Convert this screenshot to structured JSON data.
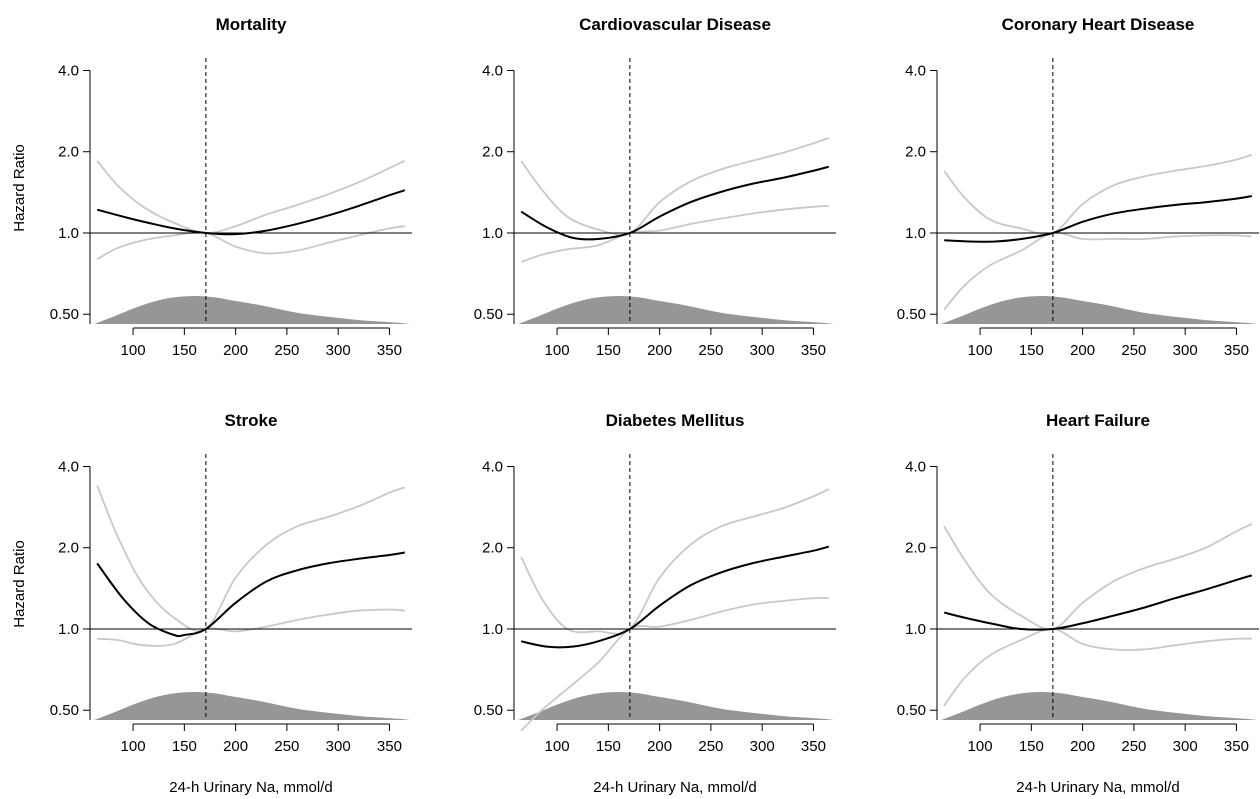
{
  "figure": {
    "y_axis_label": "Hazard Ratio",
    "x_axis_label": "24-h Urinary Na, mmol/d",
    "x_ticks": [
      100,
      150,
      200,
      250,
      300,
      350
    ],
    "y_ticks": [
      {
        "value": 0.5,
        "label": "0.50"
      },
      {
        "value": 1.0,
        "label": "1.0"
      },
      {
        "value": 2.0,
        "label": "2.0"
      },
      {
        "value": 4.0,
        "label": "4.0"
      }
    ],
    "colors": {
      "estimate": "#000000",
      "confidence_band": "#c8c8c8",
      "density": "#969696",
      "reference_line": "#000000"
    }
  },
  "chart_data": [
    {
      "type": "line",
      "title": "Mortality",
      "xlabel": "",
      "ylabel": "Hazard Ratio",
      "xlim": [
        58,
        372
      ],
      "ylim": [
        0.46,
        4.3
      ],
      "y_scale": "log",
      "reference_hr": 1.0,
      "reference_x": 171,
      "series": [
        {
          "role": "estimate",
          "x": [
            65,
            90,
            115,
            140,
            171,
            200,
            230,
            260,
            290,
            320,
            350,
            365
          ],
          "y": [
            1.22,
            1.15,
            1.09,
            1.04,
            1.0,
            0.99,
            1.02,
            1.08,
            1.16,
            1.26,
            1.38,
            1.44
          ]
        },
        {
          "role": "upper",
          "x": [
            65,
            85,
            110,
            140,
            171,
            200,
            230,
            260,
            290,
            320,
            350,
            365
          ],
          "y": [
            1.85,
            1.5,
            1.25,
            1.09,
            1.0,
            1.06,
            1.17,
            1.27,
            1.39,
            1.54,
            1.74,
            1.85
          ]
        },
        {
          "role": "lower",
          "x": [
            65,
            85,
            110,
            140,
            171,
            200,
            230,
            260,
            290,
            320,
            350,
            365
          ],
          "y": [
            0.8,
            0.88,
            0.94,
            0.98,
            1.0,
            0.89,
            0.84,
            0.86,
            0.92,
            0.98,
            1.04,
            1.06
          ]
        }
      ],
      "density": {
        "x": [
          62,
          80,
          100,
          120,
          140,
          160,
          180,
          200,
          220,
          240,
          260,
          280,
          300,
          320,
          340,
          360,
          370
        ],
        "relative_height": [
          0.0,
          0.25,
          0.55,
          0.8,
          0.95,
          1.0,
          0.95,
          0.82,
          0.7,
          0.55,
          0.4,
          0.3,
          0.22,
          0.14,
          0.09,
          0.04,
          0.0
        ]
      }
    },
    {
      "type": "line",
      "title": "Cardiovascular Disease",
      "xlabel": "",
      "ylabel": "",
      "xlim": [
        58,
        372
      ],
      "ylim": [
        0.46,
        4.3
      ],
      "y_scale": "log",
      "reference_hr": 1.0,
      "reference_x": 171,
      "series": [
        {
          "role": "estimate",
          "x": [
            65,
            90,
            115,
            140,
            171,
            200,
            230,
            260,
            290,
            320,
            350,
            365
          ],
          "y": [
            1.2,
            1.05,
            0.96,
            0.95,
            1.0,
            1.15,
            1.3,
            1.42,
            1.52,
            1.6,
            1.7,
            1.76
          ]
        },
        {
          "role": "upper",
          "x": [
            65,
            85,
            110,
            140,
            171,
            200,
            230,
            260,
            290,
            320,
            350,
            365
          ],
          "y": [
            1.85,
            1.45,
            1.15,
            1.03,
            1.0,
            1.3,
            1.55,
            1.72,
            1.85,
            1.98,
            2.15,
            2.25
          ]
        },
        {
          "role": "lower",
          "x": [
            65,
            85,
            110,
            140,
            171,
            200,
            230,
            260,
            290,
            320,
            350,
            365
          ],
          "y": [
            0.78,
            0.83,
            0.87,
            0.9,
            1.0,
            1.02,
            1.08,
            1.13,
            1.18,
            1.22,
            1.25,
            1.26
          ]
        }
      ],
      "density": {
        "x": [
          62,
          80,
          100,
          120,
          140,
          160,
          180,
          200,
          220,
          240,
          260,
          280,
          300,
          320,
          340,
          360,
          370
        ],
        "relative_height": [
          0.0,
          0.25,
          0.55,
          0.8,
          0.95,
          1.0,
          0.95,
          0.82,
          0.7,
          0.55,
          0.4,
          0.3,
          0.22,
          0.14,
          0.09,
          0.04,
          0.0
        ]
      }
    },
    {
      "type": "line",
      "title": "Coronary Heart Disease",
      "xlabel": "",
      "ylabel": "",
      "xlim": [
        58,
        372
      ],
      "ylim": [
        0.46,
        4.3
      ],
      "y_scale": "log",
      "reference_hr": 1.0,
      "reference_x": 171,
      "series": [
        {
          "role": "estimate",
          "x": [
            65,
            90,
            115,
            140,
            171,
            200,
            230,
            260,
            290,
            320,
            350,
            365
          ],
          "y": [
            0.94,
            0.93,
            0.93,
            0.95,
            1.0,
            1.1,
            1.18,
            1.23,
            1.27,
            1.3,
            1.34,
            1.37
          ]
        },
        {
          "role": "upper",
          "x": [
            65,
            85,
            110,
            140,
            171,
            200,
            230,
            260,
            290,
            320,
            350,
            365
          ],
          "y": [
            1.7,
            1.35,
            1.12,
            1.04,
            1.0,
            1.28,
            1.5,
            1.62,
            1.7,
            1.77,
            1.87,
            1.95
          ]
        },
        {
          "role": "lower",
          "x": [
            65,
            85,
            110,
            140,
            171,
            200,
            230,
            260,
            290,
            320,
            350,
            365
          ],
          "y": [
            0.52,
            0.64,
            0.76,
            0.86,
            1.0,
            0.95,
            0.95,
            0.95,
            0.97,
            0.98,
            0.98,
            0.97
          ]
        }
      ],
      "density": {
        "x": [
          62,
          80,
          100,
          120,
          140,
          160,
          180,
          200,
          220,
          240,
          260,
          280,
          300,
          320,
          340,
          360,
          370
        ],
        "relative_height": [
          0.0,
          0.25,
          0.55,
          0.8,
          0.95,
          1.0,
          0.95,
          0.82,
          0.7,
          0.55,
          0.4,
          0.3,
          0.22,
          0.14,
          0.09,
          0.04,
          0.0
        ]
      }
    },
    {
      "type": "line",
      "title": "Stroke",
      "xlabel": "24-h Urinary Na, mmol/d",
      "ylabel": "Hazard Ratio",
      "xlim": [
        58,
        372
      ],
      "ylim": [
        0.46,
        4.3
      ],
      "y_scale": "log",
      "reference_hr": 1.0,
      "reference_x": 171,
      "series": [
        {
          "role": "estimate",
          "x": [
            65,
            90,
            115,
            140,
            150,
            171,
            200,
            230,
            260,
            290,
            320,
            350,
            365
          ],
          "y": [
            1.75,
            1.3,
            1.05,
            0.95,
            0.95,
            1.0,
            1.25,
            1.5,
            1.65,
            1.75,
            1.82,
            1.88,
            1.92
          ]
        },
        {
          "role": "upper",
          "x": [
            65,
            85,
            110,
            140,
            171,
            200,
            230,
            260,
            290,
            320,
            350,
            365
          ],
          "y": [
            3.4,
            2.2,
            1.45,
            1.1,
            1.0,
            1.55,
            2.05,
            2.4,
            2.6,
            2.85,
            3.2,
            3.35
          ]
        },
        {
          "role": "lower",
          "x": [
            65,
            85,
            110,
            140,
            171,
            200,
            230,
            260,
            290,
            320,
            350,
            365
          ],
          "y": [
            0.92,
            0.91,
            0.87,
            0.88,
            1.0,
            0.98,
            1.02,
            1.08,
            1.13,
            1.17,
            1.18,
            1.17
          ]
        }
      ],
      "density": {
        "x": [
          62,
          80,
          100,
          120,
          140,
          160,
          180,
          200,
          220,
          240,
          260,
          280,
          300,
          320,
          340,
          360,
          370
        ],
        "relative_height": [
          0.0,
          0.25,
          0.55,
          0.8,
          0.95,
          1.0,
          0.95,
          0.82,
          0.7,
          0.55,
          0.4,
          0.3,
          0.22,
          0.14,
          0.09,
          0.04,
          0.0
        ]
      }
    },
    {
      "type": "line",
      "title": "Diabetes Mellitus",
      "xlabel": "24-h Urinary Na, mmol/d",
      "ylabel": "",
      "xlim": [
        58,
        372
      ],
      "ylim": [
        0.46,
        4.3
      ],
      "y_scale": "log",
      "reference_hr": 1.0,
      "reference_x": 171,
      "series": [
        {
          "role": "estimate",
          "x": [
            65,
            90,
            115,
            140,
            171,
            200,
            230,
            260,
            290,
            320,
            350,
            365
          ],
          "y": [
            0.9,
            0.86,
            0.86,
            0.9,
            1.0,
            1.22,
            1.45,
            1.62,
            1.75,
            1.85,
            1.95,
            2.02
          ]
        },
        {
          "role": "upper",
          "x": [
            65,
            85,
            110,
            140,
            171,
            200,
            230,
            260,
            290,
            320,
            350,
            365
          ],
          "y": [
            1.85,
            1.3,
            1.0,
            0.98,
            1.0,
            1.55,
            2.05,
            2.4,
            2.6,
            2.8,
            3.1,
            3.3
          ]
        },
        {
          "role": "lower",
          "x": [
            65,
            85,
            110,
            140,
            171,
            200,
            230,
            260,
            290,
            320,
            350,
            365
          ],
          "y": [
            0.42,
            0.5,
            0.6,
            0.75,
            1.0,
            1.02,
            1.08,
            1.16,
            1.23,
            1.27,
            1.3,
            1.3
          ]
        }
      ],
      "density": {
        "x": [
          62,
          80,
          100,
          120,
          140,
          160,
          180,
          200,
          220,
          240,
          260,
          280,
          300,
          320,
          340,
          360,
          370
        ],
        "relative_height": [
          0.0,
          0.25,
          0.55,
          0.8,
          0.95,
          1.0,
          0.95,
          0.82,
          0.7,
          0.55,
          0.4,
          0.3,
          0.22,
          0.14,
          0.09,
          0.04,
          0.0
        ]
      }
    },
    {
      "type": "line",
      "title": "Heart Failure",
      "xlabel": "24-h Urinary Na, mmol/d",
      "ylabel": "",
      "xlim": [
        58,
        372
      ],
      "ylim": [
        0.46,
        4.3
      ],
      "y_scale": "log",
      "reference_hr": 1.0,
      "reference_x": 171,
      "series": [
        {
          "role": "estimate",
          "x": [
            65,
            90,
            115,
            140,
            171,
            200,
            230,
            260,
            290,
            320,
            350,
            365
          ],
          "y": [
            1.15,
            1.09,
            1.04,
            1.0,
            1.0,
            1.05,
            1.12,
            1.2,
            1.3,
            1.4,
            1.52,
            1.58
          ]
        },
        {
          "role": "upper",
          "x": [
            65,
            85,
            110,
            140,
            171,
            200,
            230,
            260,
            290,
            320,
            350,
            365
          ],
          "y": [
            2.4,
            1.8,
            1.35,
            1.12,
            1.0,
            1.25,
            1.5,
            1.68,
            1.82,
            2.0,
            2.3,
            2.45
          ]
        },
        {
          "role": "lower",
          "x": [
            65,
            85,
            110,
            140,
            171,
            200,
            230,
            260,
            290,
            320,
            350,
            365
          ],
          "y": [
            0.52,
            0.66,
            0.8,
            0.91,
            1.0,
            0.88,
            0.84,
            0.84,
            0.87,
            0.9,
            0.92,
            0.92
          ]
        }
      ],
      "density": {
        "x": [
          62,
          80,
          100,
          120,
          140,
          160,
          180,
          200,
          220,
          240,
          260,
          280,
          300,
          320,
          340,
          360,
          370
        ],
        "relative_height": [
          0.0,
          0.25,
          0.55,
          0.8,
          0.95,
          1.0,
          0.95,
          0.82,
          0.7,
          0.55,
          0.4,
          0.3,
          0.22,
          0.14,
          0.09,
          0.04,
          0.0
        ]
      }
    }
  ]
}
